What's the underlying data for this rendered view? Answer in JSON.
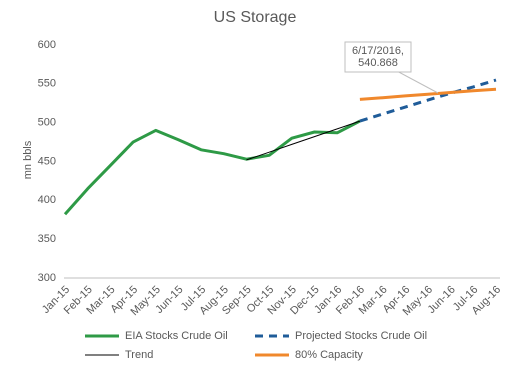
{
  "chart_data": {
    "type": "line",
    "title": "US Storage",
    "y_label": "mn bbls",
    "x": [
      "Jan-15",
      "Feb-15",
      "Mar-15",
      "Apr-15",
      "May-15",
      "Jun-15",
      "Jul-15",
      "Aug-15",
      "Sep-15",
      "Oct-15",
      "Nov-15",
      "Dec-15",
      "Jan-16",
      "Feb-16",
      "Mar-16",
      "Apr-16",
      "May-16",
      "Jun-16",
      "Jul-16",
      "Aug-16"
    ],
    "series": [
      {
        "name": "EIA Stocks Crude Oil",
        "color": "#2e9a46",
        "style": "solid",
        "values": [
          382,
          415,
          445,
          475,
          490,
          478,
          465,
          460,
          453,
          458,
          480,
          488,
          487,
          502,
          null,
          null,
          null,
          null,
          null,
          null
        ]
      },
      {
        "name": "Projected Stocks Crude Oil",
        "color": "#1f5c99",
        "style": "dashed",
        "values": [
          null,
          null,
          null,
          null,
          null,
          null,
          null,
          null,
          null,
          null,
          null,
          null,
          null,
          502,
          511,
          520,
          529,
          538,
          546,
          555
        ]
      },
      {
        "name": "Trend",
        "color": "#000000",
        "style": "thin",
        "values": [
          null,
          null,
          null,
          null,
          null,
          null,
          null,
          null,
          452,
          462,
          472,
          482,
          492,
          502,
          null,
          null,
          null,
          null,
          null,
          null
        ]
      },
      {
        "name": "80% Capacity",
        "color": "#f0882c",
        "style": "solid",
        "values": [
          null,
          null,
          null,
          null,
          null,
          null,
          null,
          null,
          null,
          null,
          null,
          null,
          null,
          530,
          532.2,
          534.4,
          536.6,
          538.8,
          541,
          543
        ]
      }
    ],
    "annotation": {
      "lines": [
        "6/17/2016,",
        "540.868"
      ]
    },
    "ylim": [
      300,
      600
    ],
    "yticks": [
      300,
      350,
      400,
      450,
      500,
      550,
      600
    ]
  }
}
